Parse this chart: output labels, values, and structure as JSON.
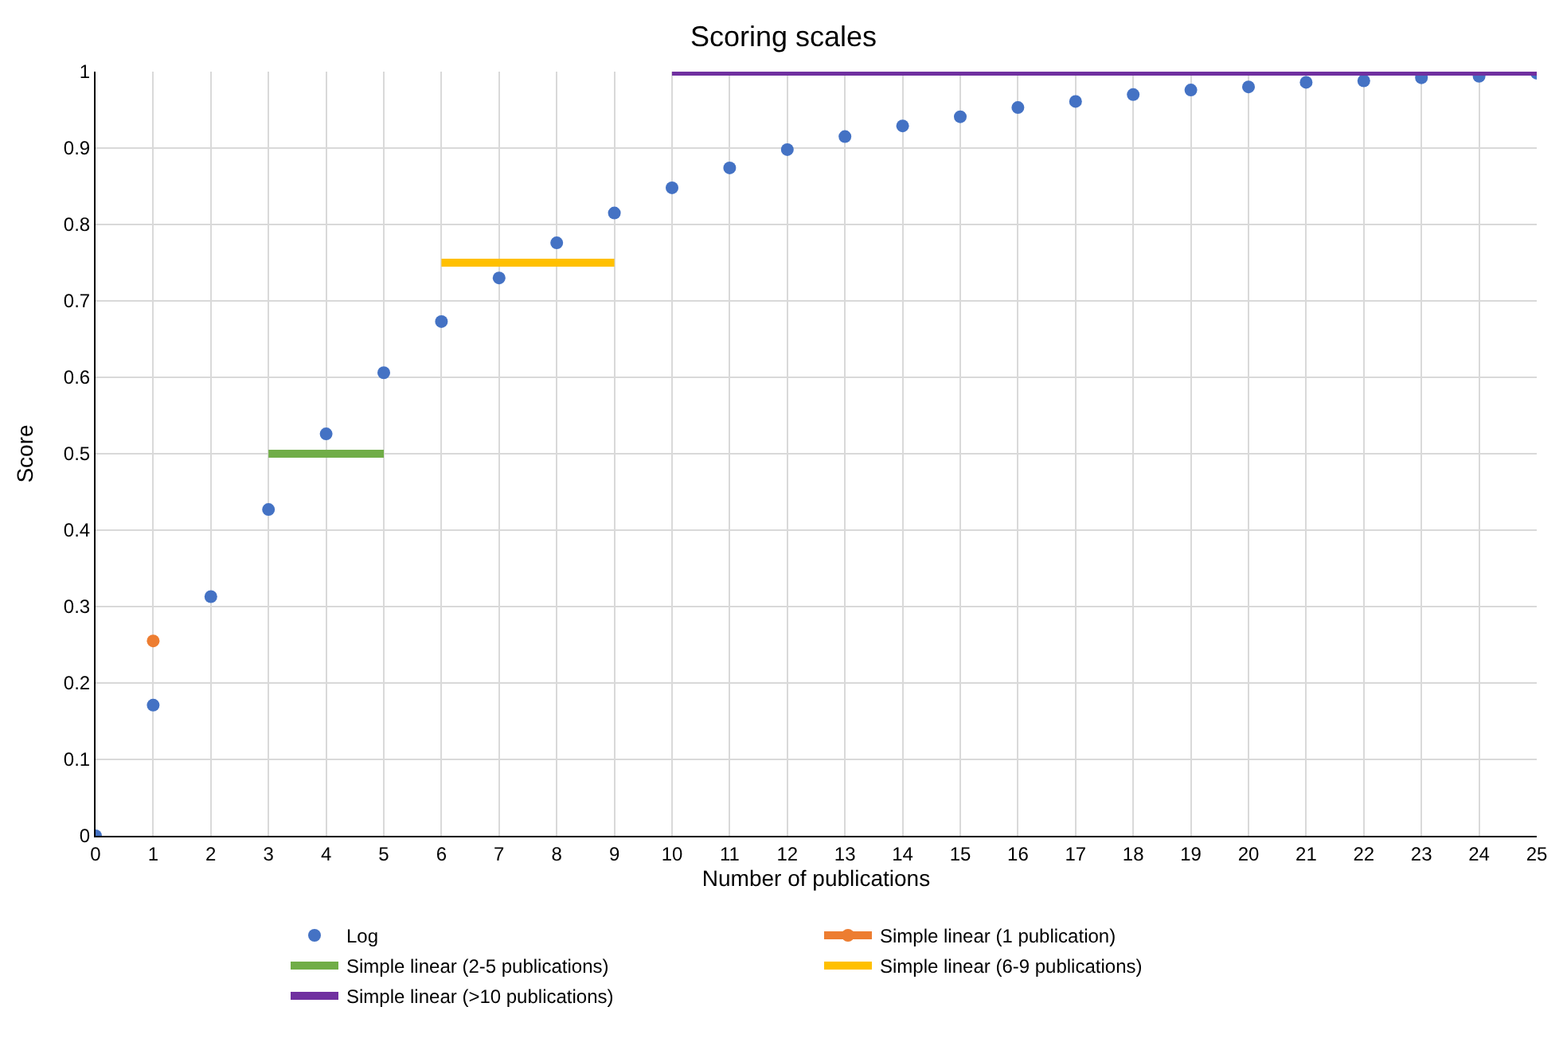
{
  "chart_data": {
    "type": "scatter",
    "title": "Scoring scales",
    "xlabel": "Number of publications",
    "ylabel": "Score",
    "xlim": [
      0,
      25
    ],
    "xticks": [
      0,
      1,
      2,
      3,
      4,
      5,
      6,
      7,
      8,
      9,
      10,
      11,
      12,
      13,
      14,
      15,
      16,
      17,
      18,
      19,
      20,
      21,
      22,
      23,
      24,
      25
    ],
    "ylim": [
      0,
      1
    ],
    "yticks": [
      0,
      0.1,
      0.2,
      0.3,
      0.4,
      0.5,
      0.6,
      0.7,
      0.8,
      0.9,
      1
    ],
    "grid": true,
    "legend": "bottom",
    "series": [
      {
        "name": "Log",
        "marker": "circle",
        "color": "#4472c4",
        "x": [
          0,
          1,
          2,
          3,
          4,
          5,
          6,
          7,
          8,
          9,
          10,
          11,
          12,
          13,
          14,
          15,
          16,
          17,
          18,
          19,
          20,
          21,
          22,
          23,
          24,
          25
        ],
        "values": [
          0,
          0.171,
          0.313,
          0.427,
          0.526,
          0.606,
          0.673,
          0.73,
          0.776,
          0.815,
          0.848,
          0.874,
          0.898,
          0.915,
          0.929,
          0.941,
          0.953,
          0.961,
          0.97,
          0.976,
          0.98,
          0.986,
          0.988,
          0.992,
          0.994,
          0.998
        ]
      },
      {
        "name": "Simple linear (1 publication)",
        "type": "line",
        "marker": "circle",
        "color": "#ed7d31",
        "x": [
          1
        ],
        "values": [
          0.255
        ]
      },
      {
        "name": "Simple linear (2-5 publications)",
        "type": "line",
        "marker": "none",
        "color": "#70ad47",
        "x": [
          3,
          4,
          5
        ],
        "values": [
          0.5,
          0.5,
          0.5
        ]
      },
      {
        "name": "Simple linear (6-9 publications)",
        "type": "line",
        "marker": "none",
        "color": "#ffc000",
        "x": [
          6,
          7,
          8,
          9
        ],
        "values": [
          0.75,
          0.75,
          0.75,
          0.75
        ]
      },
      {
        "name": "Simple linear (>10 publications)",
        "type": "line",
        "marker": "none",
        "color": "#7030a0",
        "x": [
          10,
          11,
          12,
          13,
          14,
          15,
          16,
          17,
          18,
          19,
          20,
          21,
          22,
          23,
          24,
          25
        ],
        "values": [
          1,
          1,
          1,
          1,
          1,
          1,
          1,
          1,
          1,
          1,
          1,
          1,
          1,
          1,
          1,
          1
        ]
      }
    ]
  }
}
